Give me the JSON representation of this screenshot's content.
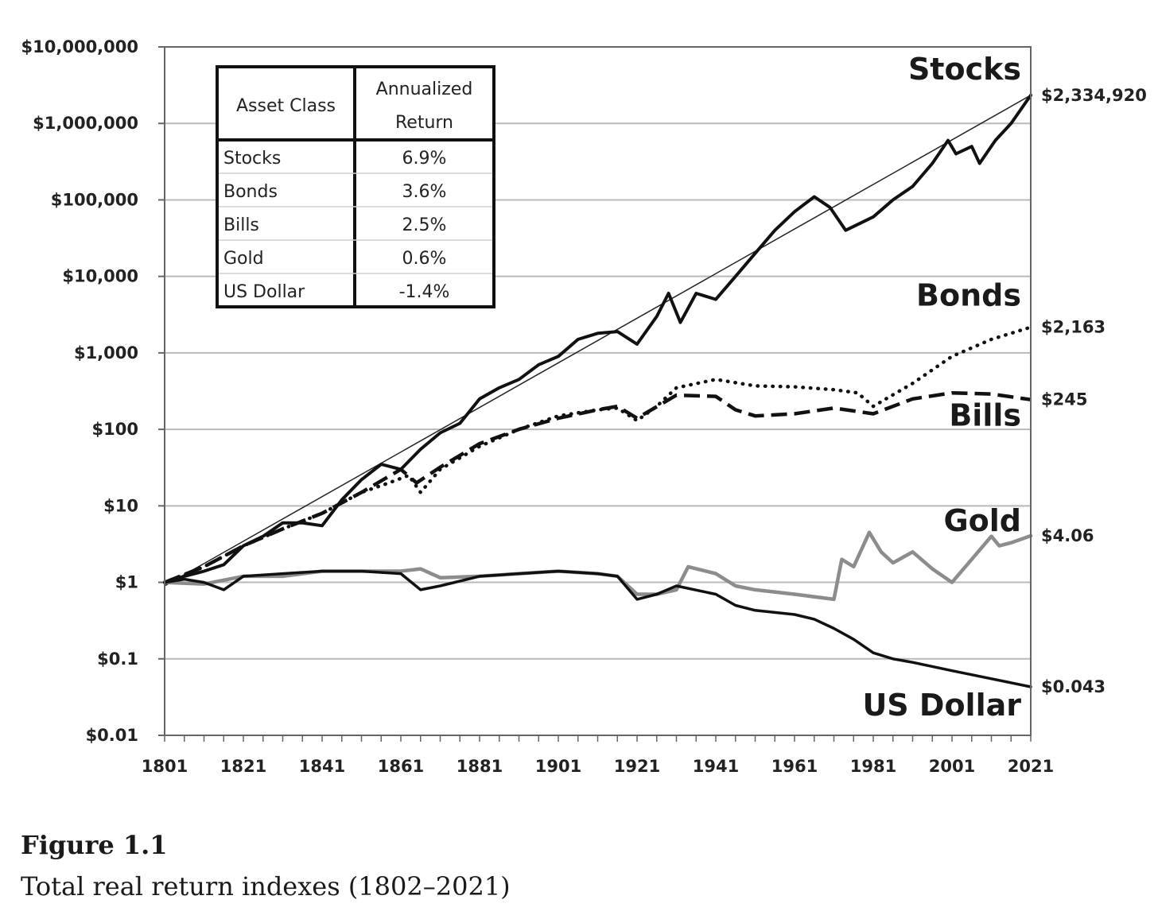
{
  "figure": {
    "label": "Figure 1.1",
    "caption": "Total real return indexes (1802–2021)"
  },
  "chart_data": {
    "type": "line",
    "y_scale": "log",
    "xlim": [
      1801,
      2021
    ],
    "ylim": [
      0.01,
      10000000
    ],
    "x_ticks": [
      "1801",
      "1821",
      "1841",
      "1861",
      "1881",
      "1901",
      "1921",
      "1941",
      "1961",
      "1981",
      "2001",
      "2021"
    ],
    "y_ticks": [
      "$10,000,000",
      "$1,000,000",
      "$100,000",
      "$10,000",
      "$1,000",
      "$100",
      "$10",
      "$1",
      "$0.1",
      "$0.01"
    ],
    "grid": true,
    "table": {
      "headers": [
        "Asset Class",
        "Annualized",
        "Return"
      ],
      "rows": [
        {
          "asset": "Stocks",
          "return": "6.9%"
        },
        {
          "asset": "Bonds",
          "return": "3.6%"
        },
        {
          "asset": "Bills",
          "return": "2.5%"
        },
        {
          "asset": "Gold",
          "return": "0.6%"
        },
        {
          "asset": "US Dollar",
          "return": "-1.4%"
        }
      ]
    },
    "series": [
      {
        "name": "Stocks",
        "end_label": "$2,334,920",
        "color": "#111111",
        "style": "solid",
        "x": [
          1801,
          1806,
          1811,
          1816,
          1821,
          1826,
          1831,
          1836,
          1841,
          1846,
          1851,
          1856,
          1861,
          1866,
          1871,
          1876,
          1881,
          1886,
          1891,
          1896,
          1901,
          1906,
          1911,
          1916,
          1921,
          1926,
          1929,
          1932,
          1936,
          1941,
          1946,
          1951,
          1956,
          1961,
          1966,
          1970,
          1974,
          1981,
          1986,
          1991,
          1996,
          2000,
          2002,
          2006,
          2008,
          2012,
          2016,
          2021
        ],
        "y": [
          1,
          1.2,
          1.4,
          1.7,
          3,
          4,
          6,
          6,
          5.5,
          12,
          22,
          35,
          30,
          55,
          90,
          120,
          250,
          350,
          450,
          700,
          900,
          1500,
          1800,
          1900,
          1300,
          3000,
          6000,
          2500,
          6000,
          5000,
          10000,
          20000,
          40000,
          70000,
          110000,
          80000,
          40000,
          60000,
          100000,
          150000,
          300000,
          600000,
          400000,
          500000,
          300000,
          600000,
          1000000,
          2334920
        ]
      },
      {
        "name": "Bonds",
        "end_label": "$2,163",
        "color": "#111111",
        "style": "dotted",
        "x": [
          1801,
          1811,
          1821,
          1831,
          1841,
          1851,
          1858,
          1863,
          1866,
          1871,
          1881,
          1891,
          1901,
          1911,
          1916,
          1921,
          1926,
          1931,
          1941,
          1951,
          1961,
          1971,
          1977,
          1981,
          1991,
          2001,
          2011,
          2021
        ],
        "y": [
          1,
          1.6,
          3,
          5,
          8,
          15,
          20,
          25,
          15,
          30,
          60,
          100,
          150,
          180,
          190,
          130,
          200,
          350,
          450,
          370,
          360,
          330,
          300,
          200,
          400,
          900,
          1500,
          2163
        ]
      },
      {
        "name": "Bills",
        "end_label": "$245",
        "color": "#111111",
        "style": "dashed",
        "x": [
          1801,
          1811,
          1821,
          1831,
          1841,
          1851,
          1861,
          1865,
          1871,
          1881,
          1891,
          1901,
          1911,
          1916,
          1921,
          1931,
          1941,
          1946,
          1951,
          1961,
          1971,
          1981,
          1991,
          2001,
          2011,
          2021
        ],
        "y": [
          1,
          1.6,
          3,
          5,
          8,
          15,
          30,
          20,
          32,
          65,
          100,
          140,
          180,
          200,
          140,
          280,
          270,
          180,
          150,
          160,
          190,
          160,
          250,
          300,
          290,
          245
        ]
      },
      {
        "name": "Gold",
        "end_label": "$4.06",
        "color": "#8c8c8c",
        "style": "solid",
        "x": [
          1801,
          1811,
          1821,
          1831,
          1841,
          1851,
          1861,
          1866,
          1871,
          1881,
          1891,
          1901,
          1911,
          1916,
          1921,
          1926,
          1931,
          1934,
          1941,
          1946,
          1951,
          1961,
          1971,
          1973,
          1976,
          1980,
          1983,
          1986,
          1991,
          1996,
          2001,
          2006,
          2011,
          2013,
          2016,
          2021
        ],
        "y": [
          1,
          0.95,
          1.2,
          1.2,
          1.4,
          1.4,
          1.4,
          1.5,
          1.15,
          1.2,
          1.3,
          1.4,
          1.3,
          1.2,
          0.7,
          0.7,
          0.8,
          1.6,
          1.3,
          0.9,
          0.8,
          0.7,
          0.6,
          2,
          1.6,
          4.5,
          2.5,
          1.8,
          2.5,
          1.5,
          1,
          2,
          4,
          3,
          3.3,
          4.06
        ]
      },
      {
        "name": "US Dollar",
        "end_label": "$0.043",
        "color": "#111111",
        "style": "solid",
        "x": [
          1801,
          1806,
          1811,
          1816,
          1821,
          1831,
          1841,
          1851,
          1861,
          1866,
          1871,
          1881,
          1891,
          1901,
          1911,
          1916,
          1921,
          1926,
          1931,
          1941,
          1946,
          1951,
          1961,
          1966,
          1971,
          1976,
          1981,
          1986,
          1991,
          2001,
          2011,
          2021
        ],
        "y": [
          1,
          1.1,
          1,
          0.8,
          1.2,
          1.3,
          1.4,
          1.4,
          1.3,
          0.8,
          0.9,
          1.2,
          1.3,
          1.4,
          1.3,
          1.2,
          0.6,
          0.7,
          0.9,
          0.7,
          0.5,
          0.43,
          0.38,
          0.33,
          0.25,
          0.18,
          0.12,
          0.1,
          0.09,
          0.07,
          0.055,
          0.043
        ]
      }
    ]
  }
}
